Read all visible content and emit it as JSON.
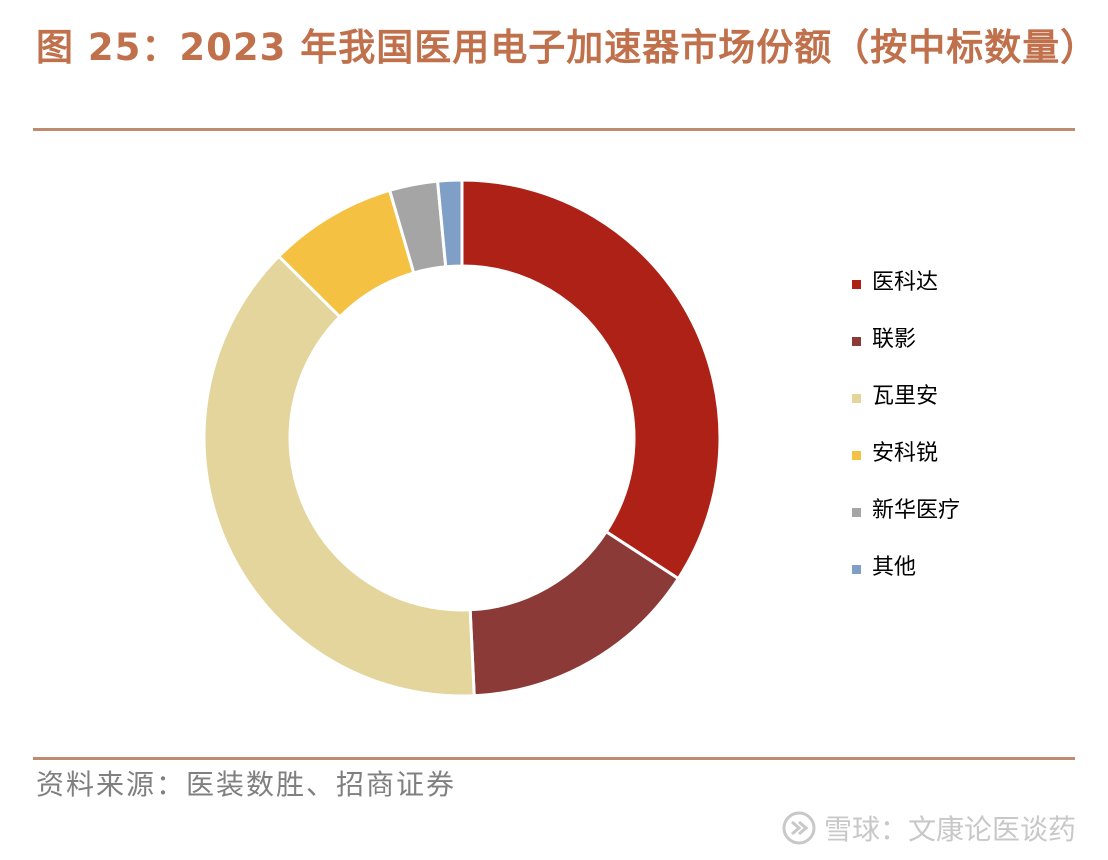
{
  "figure": {
    "title": "图 25：2023 年我国医用电子加速器市场份额（按中标数量）",
    "source": "资料来源：医装数胜、招商证券",
    "watermark": "雪球：文康论医谈药"
  },
  "chart_data": {
    "type": "pie",
    "title": "",
    "donut": true,
    "legend_position": "right",
    "categories": [
      "医科达",
      "联影",
      "瓦里安",
      "安科锐",
      "新华医疗",
      "其他"
    ],
    "values": [
      34,
      15,
      38,
      8,
      3,
      1.5
    ],
    "unit": "%",
    "colors": [
      "#ad2117",
      "#8b3a38",
      "#e3d59b",
      "#f5c143",
      "#a5a5a5",
      "#7f9fc6"
    ]
  }
}
